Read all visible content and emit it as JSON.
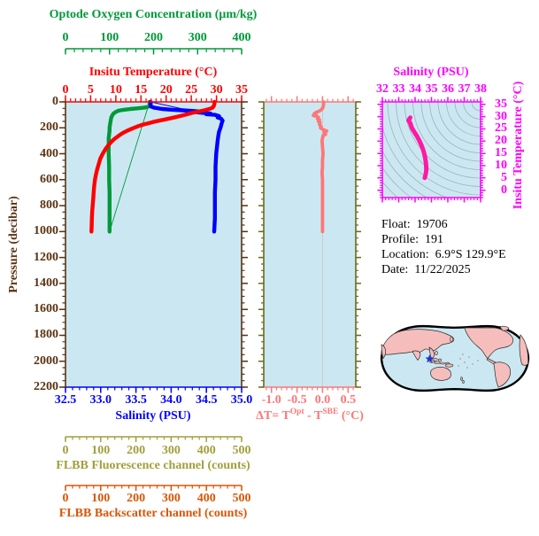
{
  "colors": {
    "background": "#ffffff",
    "plot_bg": "#cbe8f2",
    "oxygen": "#009939",
    "temperature": "#ff0000",
    "salinity": "#0000ff",
    "pressure_axis": "#5a3311",
    "fluorescence": "#a09f3c",
    "backscatter": "#d65708",
    "delta_t": "#ff7676",
    "mid_axis_olive": "#6b6b1a",
    "magenta": "#ff00ff",
    "ts_curve": "#ff18a8",
    "ts_curve_edge": "#f01030",
    "contour": "#9fb0ba",
    "reference_line": "#c9c9c9",
    "map_land": "#f6bdbd",
    "map_ocean": "#cbe8f2",
    "map_outline": "#000000",
    "marker_blue": "#2233cc"
  },
  "float_info": {
    "lines": [
      {
        "label": "Float:",
        "value": "19706"
      },
      {
        "label": "Profile:",
        "value": "191"
      },
      {
        "label": "Location:",
        "value": "6.9°S  129.9°E"
      },
      {
        "label": "Date:",
        "value": "11/22/2025"
      }
    ]
  },
  "map": {
    "type": "world-map",
    "projection": "pacific-centered",
    "marker": "float-location-star"
  },
  "chart_data": [
    {
      "id": "profile-plot",
      "type": "line",
      "title": "",
      "axes": {
        "oxygen": {
          "label": "Optode Oxygen Concentration (μm/kg)",
          "range": [
            0,
            400
          ],
          "ticks": [
            "0",
            "100",
            "200",
            "300",
            "400"
          ],
          "minor_step": 20,
          "position": "top-outer"
        },
        "temperature": {
          "label": "Insitu Temperature (°C)",
          "range": [
            0,
            35
          ],
          "ticks": [
            "0",
            "5",
            "10",
            "15",
            "20",
            "25",
            "30",
            "35"
          ],
          "minor_step": 1,
          "position": "top"
        },
        "pressure": {
          "label": "Pressure (decibar)",
          "range": [
            0,
            2200
          ],
          "ticks": [
            "0",
            "200",
            "400",
            "600",
            "800",
            "1000",
            "1200",
            "1400",
            "1600",
            "1800",
            "2000",
            "2200"
          ],
          "minor_step": 50,
          "position": "left"
        },
        "salinity": {
          "label": "Salinity (PSU)",
          "range": [
            32.5,
            35.0
          ],
          "ticks": [
            "32.5",
            "33.0",
            "33.5",
            "34.0",
            "34.5",
            "35.0"
          ],
          "minor_step": 0.1,
          "position": "bottom"
        },
        "fluorescence": {
          "label": "FLBB Fluorescence channel (counts)",
          "range": [
            0,
            500
          ],
          "ticks": [
            "0",
            "100",
            "200",
            "300",
            "400",
            "500"
          ],
          "minor_step": 20,
          "position": "bottom-outer-1"
        },
        "backscatter": {
          "label": "FLBB Backscatter channel (counts)",
          "range": [
            0,
            500
          ],
          "ticks": [
            "0",
            "100",
            "200",
            "300",
            "400",
            "500"
          ],
          "minor_step": 20,
          "position": "bottom-outer-2"
        }
      },
      "series": [
        {
          "name": "temperature",
          "axis": "temperature",
          "points": [
            [
              0,
              29.6
            ],
            [
              15,
              29.6
            ],
            [
              30,
              29.5
            ],
            [
              45,
              29.2
            ],
            [
              55,
              28.6
            ],
            [
              65,
              27.6
            ],
            [
              75,
              26.4
            ],
            [
              85,
              25.2
            ],
            [
              95,
              24.2
            ],
            [
              105,
              23.2
            ],
            [
              115,
              22.2
            ],
            [
              125,
              21.0
            ],
            [
              135,
              19.8
            ],
            [
              145,
              18.6
            ],
            [
              155,
              17.4
            ],
            [
              165,
              16.4
            ],
            [
              175,
              15.4
            ],
            [
              185,
              14.6
            ],
            [
              200,
              13.6
            ],
            [
              220,
              12.4
            ],
            [
              240,
              11.4
            ],
            [
              260,
              10.6
            ],
            [
              280,
              9.9
            ],
            [
              300,
              9.3
            ],
            [
              330,
              8.6
            ],
            [
              360,
              8.0
            ],
            [
              400,
              7.4
            ],
            [
              440,
              6.9
            ],
            [
              480,
              6.6
            ],
            [
              520,
              6.3
            ],
            [
              560,
              6.05
            ],
            [
              600,
              5.85
            ],
            [
              650,
              5.7
            ],
            [
              700,
              5.6
            ],
            [
              750,
              5.5
            ],
            [
              800,
              5.4
            ],
            [
              850,
              5.3
            ],
            [
              900,
              5.25
            ],
            [
              950,
              5.2
            ],
            [
              1000,
              5.15
            ]
          ]
        },
        {
          "name": "salinity",
          "axis": "salinity",
          "points": [
            [
              0,
              33.71
            ],
            [
              20,
              33.71
            ],
            [
              35,
              33.71
            ],
            [
              45,
              33.76
            ],
            [
              55,
              33.87
            ],
            [
              60,
              34.0
            ],
            [
              65,
              34.16
            ],
            [
              70,
              34.3
            ],
            [
              75,
              34.42
            ],
            [
              80,
              34.36
            ],
            [
              85,
              34.46
            ],
            [
              90,
              34.56
            ],
            [
              95,
              34.5
            ],
            [
              100,
              34.62
            ],
            [
              110,
              34.68
            ],
            [
              120,
              34.66
            ],
            [
              130,
              34.71
            ],
            [
              145,
              34.73
            ],
            [
              160,
              34.72
            ],
            [
              180,
              34.71
            ],
            [
              200,
              34.7
            ],
            [
              230,
              34.68
            ],
            [
              260,
              34.67
            ],
            [
              300,
              34.66
            ],
            [
              350,
              34.65
            ],
            [
              400,
              34.64
            ],
            [
              500,
              34.63
            ],
            [
              600,
              34.63
            ],
            [
              700,
              34.62
            ],
            [
              800,
              34.62
            ],
            [
              900,
              34.62
            ],
            [
              1000,
              34.61
            ]
          ]
        },
        {
          "name": "oxygen",
          "axis": "oxygen",
          "points": [
            [
              0,
              191
            ],
            [
              15,
              191
            ],
            [
              30,
              191
            ],
            [
              40,
              186
            ],
            [
              45,
              177
            ],
            [
              50,
              163
            ],
            [
              55,
              148
            ],
            [
              60,
              134
            ],
            [
              65,
              125
            ],
            [
              70,
              119
            ],
            [
              80,
              113
            ],
            [
              90,
              109
            ],
            [
              100,
              107
            ],
            [
              120,
              104
            ],
            [
              140,
              103
            ],
            [
              160,
              102
            ],
            [
              180,
              101
            ],
            [
              200,
              100
            ],
            [
              220,
              100
            ],
            [
              250,
              99
            ],
            [
              280,
              98
            ],
            [
              300,
              98
            ],
            [
              350,
              98
            ],
            [
              400,
              98
            ],
            [
              500,
              99
            ],
            [
              600,
              99
            ],
            [
              700,
              100
            ],
            [
              800,
              100
            ],
            [
              900,
              100
            ],
            [
              1000,
              100
            ]
          ]
        }
      ],
      "connector_lines": [
        {
          "series": "oxygen",
          "points": [
            [
              0,
              191
            ],
            [
              1000,
              100
            ]
          ]
        },
        {
          "series": "salinity",
          "points": [
            [
              0,
              33.71
            ],
            [
              115,
              34.67
            ]
          ]
        }
      ]
    },
    {
      "id": "delta-t-plot",
      "type": "line",
      "axes": {
        "delta_t": {
          "label_parts": {
            "prefix": "ΔT= T",
            "sup1": "Opt",
            "mid": " - T",
            "sup2": "SBE",
            "suffix": " (°C)"
          },
          "range": [
            -1.15,
            0.65
          ],
          "ticks": [
            "-1.0",
            "-0.5",
            "0.0",
            "0.5"
          ],
          "minor_step": 0.1,
          "position": "bottom"
        },
        "pressure": {
          "range": [
            0,
            2200
          ],
          "minor_step": 50,
          "major_step": 200
        }
      },
      "series": [
        {
          "name": "delta-t",
          "points": [
            [
              0,
              0.02
            ],
            [
              20,
              0.02
            ],
            [
              40,
              0.01
            ],
            [
              60,
              -0.02
            ],
            [
              70,
              -0.06
            ],
            [
              80,
              -0.12
            ],
            [
              90,
              -0.16
            ],
            [
              100,
              -0.13
            ],
            [
              105,
              -0.18
            ],
            [
              110,
              -0.12
            ],
            [
              120,
              -0.08
            ],
            [
              130,
              -0.1
            ],
            [
              140,
              -0.06
            ],
            [
              150,
              -0.08
            ],
            [
              160,
              -0.05
            ],
            [
              175,
              -0.06
            ],
            [
              190,
              -0.03
            ],
            [
              200,
              -0.04
            ],
            [
              215,
              0.02
            ],
            [
              225,
              0.08
            ],
            [
              235,
              0.03
            ],
            [
              250,
              0.06
            ],
            [
              260,
              0.01
            ],
            [
              280,
              0
            ],
            [
              300,
              -0.01
            ],
            [
              350,
              0
            ],
            [
              400,
              0.01
            ],
            [
              450,
              0
            ],
            [
              500,
              0
            ],
            [
              550,
              -0.01
            ],
            [
              600,
              0
            ],
            [
              700,
              0
            ],
            [
              800,
              0
            ],
            [
              900,
              0
            ],
            [
              1000,
              0
            ]
          ]
        }
      ],
      "reference_line_x": 0
    },
    {
      "id": "ts-diagram",
      "type": "line",
      "axes": {
        "salinity": {
          "label": "Salinity (PSU)",
          "range": [
            32,
            38
          ],
          "ticks": [
            "32",
            "33",
            "34",
            "35",
            "36",
            "37",
            "38"
          ],
          "minor_step": 0.2,
          "position": "top"
        },
        "temperature": {
          "label": "Insitu Temperature (°C)",
          "range": [
            0,
            35
          ],
          "ticks": [
            "0",
            "5",
            "10",
            "15",
            "20",
            "25",
            "30",
            "35"
          ],
          "minor_step": 1,
          "position": "right"
        }
      },
      "series": [
        {
          "name": "ts-curve",
          "points": [
            [
              33.71,
              29.6
            ],
            [
              33.68,
              29.3
            ],
            [
              33.62,
              28.9
            ],
            [
              33.6,
              28.4
            ],
            [
              33.66,
              27.9
            ],
            [
              33.72,
              27.2
            ],
            [
              33.76,
              26.3
            ],
            [
              33.82,
              25.2
            ],
            [
              33.95,
              23.8
            ],
            [
              34.1,
              22.2
            ],
            [
              34.25,
              20.4
            ],
            [
              34.38,
              18.6
            ],
            [
              34.48,
              16.8
            ],
            [
              34.56,
              15.0
            ],
            [
              34.62,
              13.2
            ],
            [
              34.66,
              11.5
            ],
            [
              34.68,
              10.0
            ],
            [
              34.69,
              8.8
            ],
            [
              34.68,
              7.8
            ],
            [
              34.66,
              6.9
            ],
            [
              34.63,
              6.1
            ],
            [
              34.61,
              5.5
            ],
            [
              34.6,
              5.2
            ],
            [
              34.59,
              5.0
            ]
          ]
        }
      ],
      "background_contours": {
        "style": "isopycnal-arcs",
        "count": 15
      }
    }
  ]
}
